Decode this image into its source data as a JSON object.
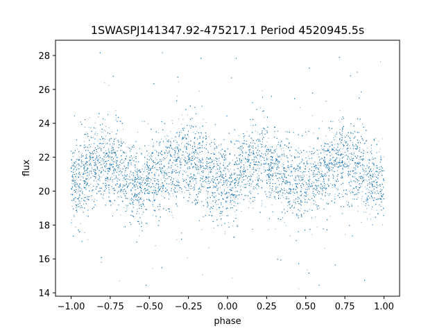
{
  "chart_data": {
    "type": "scatter",
    "title": "1SWASPJ141347.92-475217.1 Period 4520945.5s",
    "xlabel": "phase",
    "ylabel": "flux",
    "xlim": [
      -1.1,
      1.1
    ],
    "ylim": [
      13.8,
      28.9
    ],
    "xticks": [
      -1.0,
      -0.75,
      -0.5,
      -0.25,
      0.0,
      0.25,
      0.5,
      0.75,
      1.0
    ],
    "xtick_labels": [
      "−1.00",
      "−0.75",
      "−0.50",
      "−0.25",
      "0.00",
      "0.25",
      "0.50",
      "0.75",
      "1.00"
    ],
    "yticks": [
      14,
      16,
      18,
      20,
      22,
      24,
      26,
      28
    ],
    "ytick_labels": [
      "14",
      "16",
      "18",
      "20",
      "22",
      "24",
      "26",
      "28"
    ],
    "grid": false,
    "marker_color": "#1f77b4",
    "phase_range": [
      -1.0,
      1.0
    ],
    "mean_flux_profile": {
      "phase": [
        0.0,
        0.05,
        0.1,
        0.15,
        0.2,
        0.25,
        0.3,
        0.35,
        0.4,
        0.45,
        0.5,
        0.55,
        0.6,
        0.65,
        0.7,
        0.75,
        0.8,
        0.85,
        0.9,
        0.95,
        1.0
      ],
      "flux": [
        20.5,
        20.3,
        21.2,
        21.6,
        21.6,
        21.8,
        21.5,
        21.0,
        20.5,
        20.2,
        20.8,
        20.6,
        21.0,
        21.5,
        21.8,
        21.8,
        21.6,
        21.2,
        20.8,
        20.6,
        20.5
      ]
    },
    "scatter_spread_sigma": 1.2,
    "approx_point_count": 14000,
    "flux_range": [
      14.2,
      28.2
    ]
  }
}
